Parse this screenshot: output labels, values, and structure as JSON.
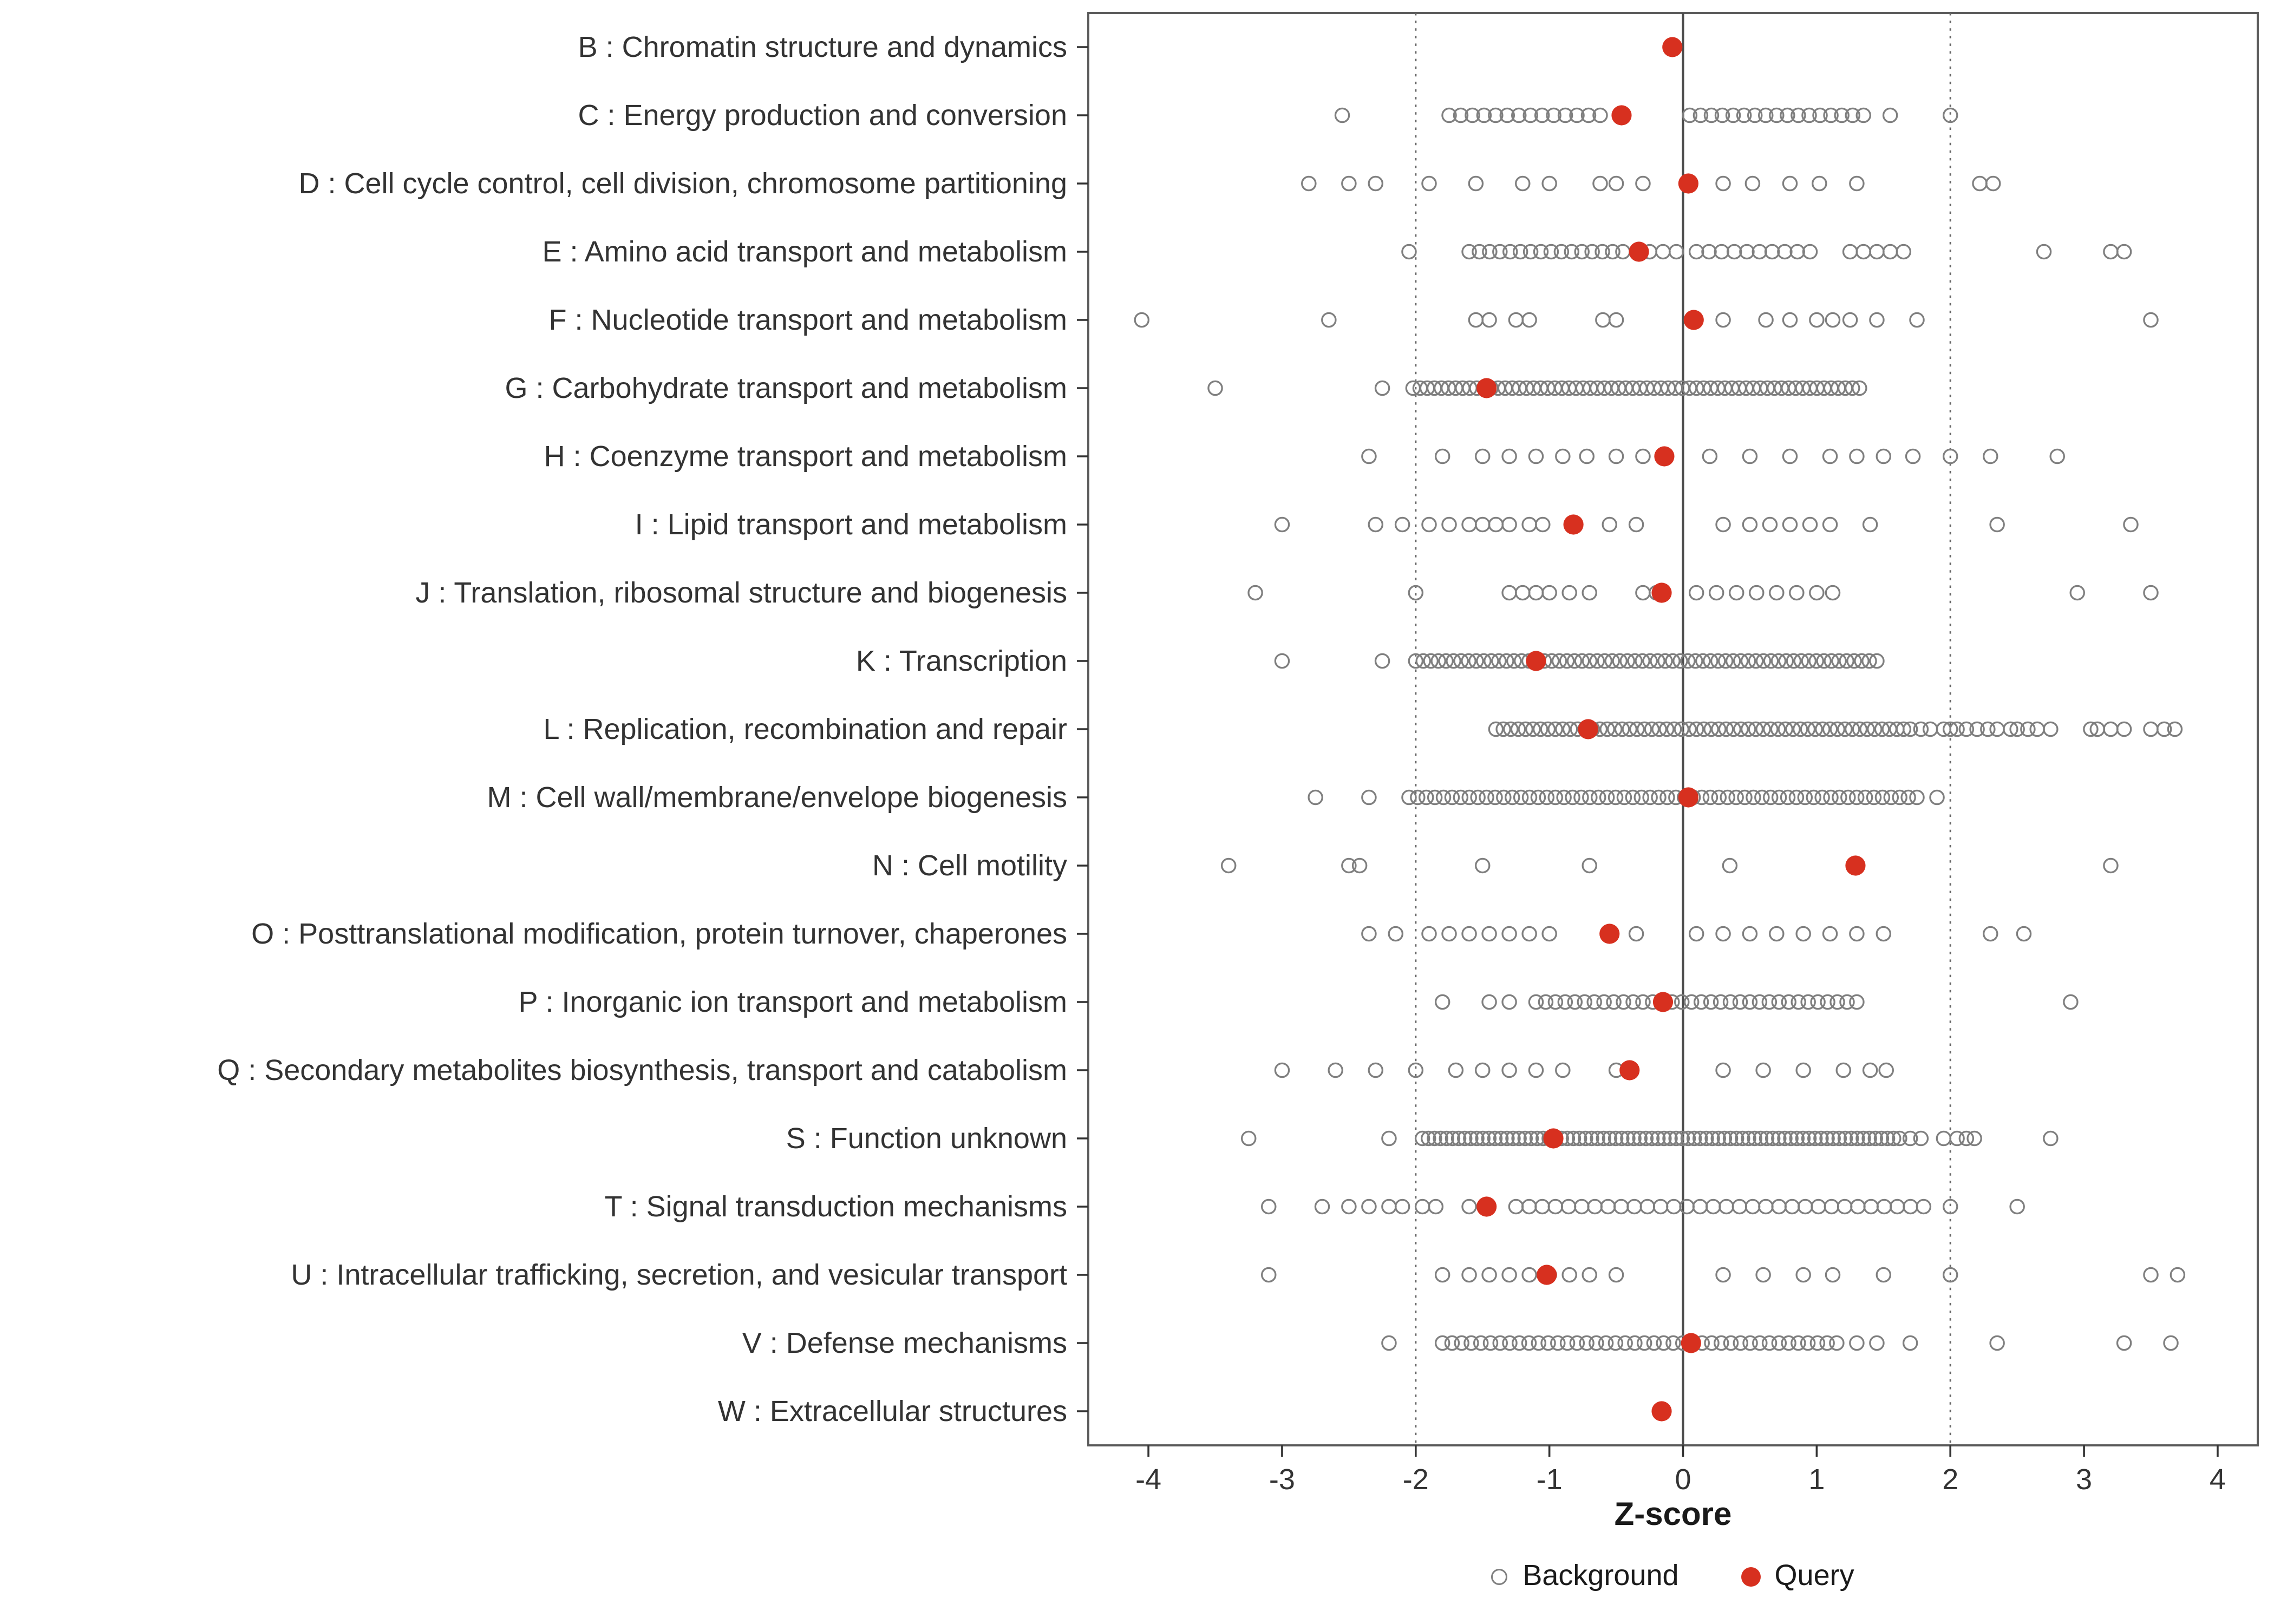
{
  "colors": {
    "query": "#D7301F",
    "background": "#7F7F7F",
    "panel_border": "#595959",
    "ref_line": "#4D4D4D",
    "dotted_line": "#666666",
    "axis_text": "#333333"
  },
  "chart_data": {
    "type": "scatter",
    "title": "",
    "xlabel": "Z-score",
    "ylabel": "",
    "xlim": [
      -4.45,
      4.3
    ],
    "x_ticks": [
      -4,
      -3,
      -2,
      -1,
      0,
      1,
      2,
      3,
      4
    ],
    "ref_line_solid": 0,
    "ref_lines_dotted": [
      -2,
      2
    ],
    "grid": false,
    "legend": {
      "position": "bottom",
      "items": [
        {
          "label": "Background",
          "marker": "open-circle",
          "color": "#7F7F7F"
        },
        {
          "label": "Query",
          "marker": "filled-circle",
          "color": "#D7301F"
        }
      ]
    },
    "categories": [
      {
        "label": "B : Chromatin structure and dynamics",
        "query": -0.08,
        "background": []
      },
      {
        "label": "C : Energy production and conversion",
        "query": -0.46,
        "background": [
          -2.55,
          {
            "from": -1.75,
            "to": -0.62,
            "count": 14
          },
          {
            "from": 0.05,
            "to": 1.35,
            "count": 17
          },
          1.55,
          2.0
        ]
      },
      {
        "label": "D : Cell cycle control, cell division, chromosome partitioning",
        "query": 0.04,
        "background": [
          -2.8,
          -2.5,
          -2.3,
          -1.9,
          -1.55,
          -1.2,
          -1.0,
          -0.62,
          -0.5,
          -0.3,
          0.3,
          0.52,
          0.8,
          1.02,
          1.3,
          2.22,
          2.32
        ]
      },
      {
        "label": "E : Amino acid transport and metabolism",
        "query": -0.33,
        "background": [
          -2.05,
          {
            "from": -1.6,
            "to": -0.45,
            "count": 16
          },
          -0.25,
          -0.15,
          -0.05,
          {
            "from": 0.1,
            "to": 0.95,
            "count": 10
          },
          1.25,
          1.35,
          1.45,
          1.55,
          1.65,
          2.7,
          3.2,
          3.3
        ]
      },
      {
        "label": "F : Nucleotide transport and metabolism",
        "query": 0.08,
        "background": [
          -4.05,
          -2.65,
          -1.55,
          -1.45,
          -1.25,
          -1.15,
          -0.6,
          -0.5,
          0.3,
          0.62,
          0.8,
          1.0,
          1.12,
          1.25,
          1.45,
          1.75,
          3.5
        ]
      },
      {
        "label": "G : Carbohydrate transport and metabolism",
        "query": -1.47,
        "background": [
          -3.5,
          -2.25,
          {
            "from": -2.02,
            "to": 1.32,
            "count": 64
          }
        ]
      },
      {
        "label": "H : Coenzyme transport and metabolism",
        "query": -0.14,
        "background": [
          -2.35,
          -1.8,
          -1.5,
          -1.3,
          -1.1,
          -0.9,
          -0.72,
          -0.5,
          -0.3,
          0.2,
          0.5,
          0.8,
          1.1,
          1.3,
          1.5,
          1.72,
          2.0,
          2.3,
          2.8
        ]
      },
      {
        "label": "I : Lipid transport and metabolism",
        "query": -0.82,
        "background": [
          -3.0,
          -2.3,
          -2.1,
          -1.9,
          -1.75,
          -1.6,
          -1.5,
          -1.4,
          -1.3,
          -1.15,
          -1.05,
          -0.55,
          -0.35,
          0.3,
          0.5,
          0.65,
          0.8,
          0.95,
          1.1,
          1.4,
          2.35,
          3.35
        ]
      },
      {
        "label": "J : Translation, ribosomal structure and biogenesis",
        "query": -0.16,
        "background": [
          -3.2,
          -2.0,
          -1.3,
          -1.2,
          -1.1,
          -1.0,
          -0.85,
          -0.7,
          -0.3,
          -0.2,
          0.1,
          0.25,
          0.4,
          0.55,
          0.7,
          0.85,
          1.0,
          1.12,
          2.95,
          3.5
        ]
      },
      {
        "label": "K : Transcription",
        "query": -1.1,
        "background": [
          -3.0,
          -2.25,
          {
            "from": -2.0,
            "to": 1.45,
            "count": 62
          }
        ]
      },
      {
        "label": "L : Replication, recombination and repair",
        "query": -0.71,
        "background": [
          {
            "from": -1.4,
            "to": 1.6,
            "count": 55
          },
          1.65,
          1.7,
          1.78,
          1.85,
          1.95,
          2.0,
          2.05,
          2.12,
          2.2,
          2.28,
          2.35,
          2.45,
          2.5,
          2.58,
          2.65,
          2.75,
          3.05,
          3.1,
          3.2,
          3.3,
          3.5,
          3.6,
          3.68
        ]
      },
      {
        "label": "M : Cell wall/membrane/envelope biogenesis",
        "query": 0.04,
        "background": [
          -2.75,
          -2.35,
          {
            "from": -2.05,
            "to": 1.75,
            "count": 60
          },
          1.9
        ]
      },
      {
        "label": "N : Cell motility",
        "query": 1.29,
        "background": [
          -3.4,
          -2.5,
          -2.42,
          -1.5,
          -0.7,
          0.35,
          3.2
        ]
      },
      {
        "label": "O : Posttranslational modification, protein turnover, chaperones",
        "query": -0.55,
        "background": [
          -2.35,
          -2.15,
          -1.9,
          -1.75,
          -1.6,
          -1.45,
          -1.3,
          -1.15,
          -1.0,
          -0.55,
          -0.35,
          0.1,
          0.3,
          0.5,
          0.7,
          0.9,
          1.1,
          1.3,
          1.5,
          2.3,
          2.55
        ]
      },
      {
        "label": "P : Inorganic ion transport and metabolism",
        "query": -0.15,
        "background": [
          -1.8,
          -1.45,
          -1.3,
          {
            "from": -1.1,
            "to": 1.3,
            "count": 34
          },
          2.9
        ]
      },
      {
        "label": "Q : Secondary metabolites biosynthesis, transport and catabolism",
        "query": -0.4,
        "background": [
          -3.0,
          -2.6,
          -2.3,
          -2.0,
          -1.7,
          -1.5,
          -1.3,
          -1.1,
          -0.9,
          -0.5,
          0.3,
          0.6,
          0.9,
          1.2,
          1.4,
          1.52
        ]
      },
      {
        "label": "S : Function unknown",
        "query": -0.97,
        "background": [
          -3.25,
          -2.2,
          {
            "from": -1.95,
            "to": 1.62,
            "count": 80
          },
          1.7,
          1.78,
          1.95,
          2.05,
          2.12,
          2.18,
          2.75
        ]
      },
      {
        "label": "T : Signal transduction mechanisms",
        "query": -1.47,
        "background": [
          -3.1,
          -2.7,
          -2.5,
          -2.35,
          -2.2,
          -2.1,
          -1.95,
          -1.85,
          -1.6,
          {
            "from": -1.25,
            "to": 1.8,
            "count": 32
          },
          2.0,
          2.5
        ]
      },
      {
        "label": "U : Intracellular trafficking, secretion, and vesicular transport",
        "query": -1.02,
        "background": [
          -3.1,
          -1.8,
          -1.6,
          -1.45,
          -1.3,
          -1.15,
          -1.0,
          -0.85,
          -0.7,
          -0.5,
          0.3,
          0.6,
          0.9,
          1.12,
          1.5,
          2.0,
          3.5,
          3.7
        ]
      },
      {
        "label": "V : Defense mechanisms",
        "query": 0.06,
        "background": [
          -2.2,
          {
            "from": -1.8,
            "to": 1.15,
            "count": 42
          },
          1.3,
          1.45,
          1.7,
          2.35,
          3.3,
          3.65
        ]
      },
      {
        "label": "W : Extracellular structures",
        "query": -0.16,
        "background": []
      }
    ]
  }
}
